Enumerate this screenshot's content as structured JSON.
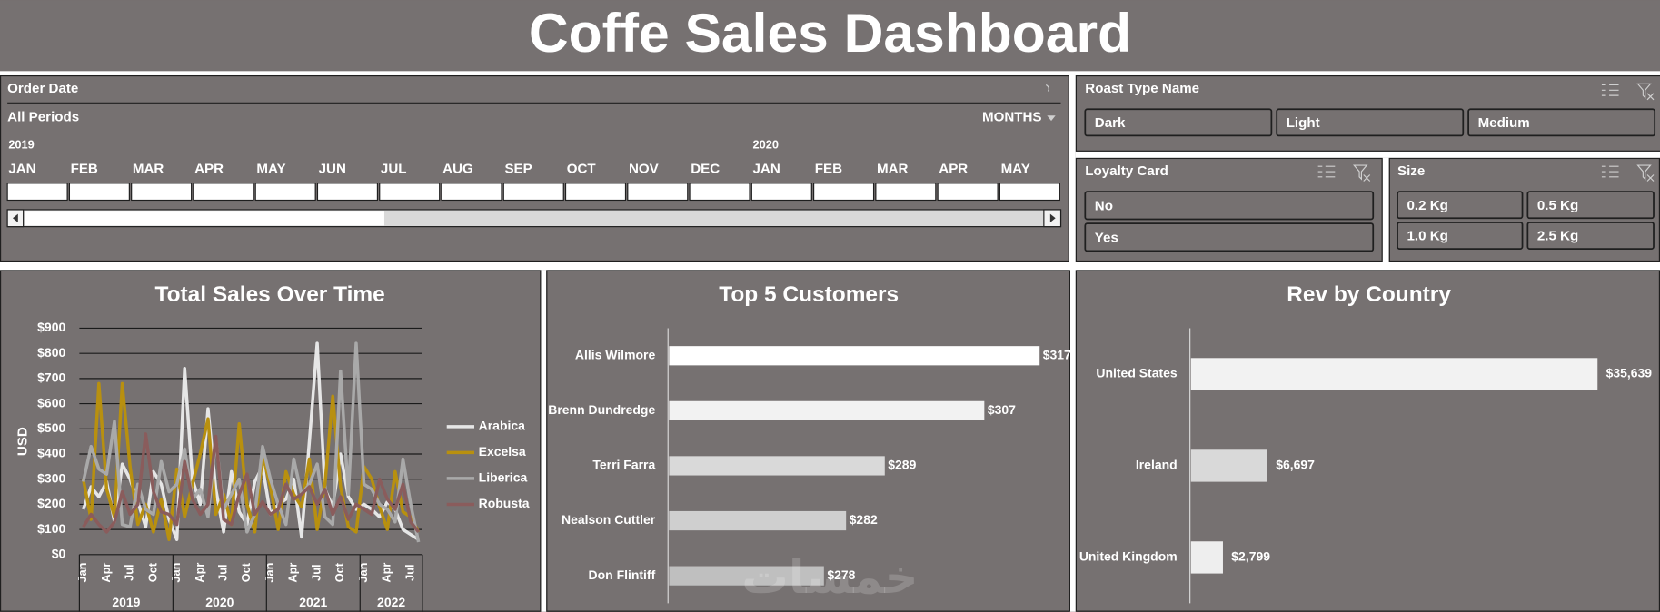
{
  "title": "Coffe Sales Dashboard",
  "timeline": {
    "title": "Order Date",
    "period": "All Periods",
    "level": "MONTHS",
    "years": [
      "2019",
      "2020"
    ],
    "months": [
      "JAN",
      "FEB",
      "MAR",
      "APR",
      "MAY",
      "JUN",
      "JUL",
      "AUG",
      "SEP",
      "OCT",
      "NOV",
      "DEC",
      "JAN",
      "FEB",
      "MAR",
      "APR",
      "MAY"
    ]
  },
  "slicers": [
    {
      "title": "Roast Type Name",
      "items": [
        "Dark",
        "Light",
        "Medium"
      ]
    },
    {
      "title": "Loyalty Card",
      "items": [
        "No",
        "Yes"
      ]
    },
    {
      "title": "Size",
      "items": [
        "0.2 Kg",
        "0.5 Kg",
        "1.0 Kg",
        "2.5 Kg"
      ]
    }
  ],
  "watermark": "خمسات",
  "chart_data": [
    {
      "type": "line",
      "title": "Total Sales Over Time",
      "ylabel": "USD",
      "categories": [
        "Jan",
        null,
        null,
        "Apr",
        null,
        null,
        "Jul",
        null,
        null,
        "Oct",
        null,
        null,
        "Jan",
        null,
        null,
        "Apr",
        null,
        null,
        "Jul",
        null,
        null,
        "Oct",
        null,
        null,
        "Jan",
        null,
        null,
        "Apr",
        null,
        null,
        "Jul",
        null,
        null,
        "Oct",
        null,
        null,
        "Jan",
        null,
        null,
        "Apr",
        null,
        null,
        "Jul",
        null
      ],
      "years": [
        "2019",
        "2020",
        "2021",
        "2022"
      ],
      "ylim": [
        0,
        900
      ],
      "yticks": [
        {
          "value": 0,
          "label": "$0"
        },
        {
          "value": 100,
          "label": "$100"
        },
        {
          "value": 200,
          "label": "$200"
        },
        {
          "value": 300,
          "label": "$300"
        },
        {
          "value": 400,
          "label": "$400"
        },
        {
          "value": 500,
          "label": "$500"
        },
        {
          "value": 600,
          "label": "$600"
        },
        {
          "value": 700,
          "label": "$700"
        },
        {
          "value": 800,
          "label": "$800"
        },
        {
          "value": 900,
          "label": "$900"
        }
      ],
      "grid": true,
      "legend": "right",
      "series": [
        {
          "name": "Arabica",
          "color": "#e6e6e6",
          "values": [
            180,
            270,
            230,
            290,
            130,
            360,
            300,
            210,
            110,
            330,
            280,
            140,
            60,
            740,
            300,
            200,
            580,
            260,
            90,
            330,
            170,
            120,
            290,
            350,
            160,
            200,
            220,
            300,
            70,
            450,
            840,
            260,
            190,
            400,
            230,
            180,
            200,
            180,
            150,
            210,
            180,
            100,
            80,
            60
          ]
        },
        {
          "name": "Excelsa",
          "color": "#b8900f",
          "values": [
            300,
            140,
            680,
            260,
            150,
            680,
            350,
            120,
            200,
            90,
            220,
            60,
            340,
            150,
            280,
            400,
            540,
            160,
            240,
            120,
            520,
            200,
            90,
            400,
            270,
            100,
            330,
            240,
            190,
            380,
            100,
            280,
            630,
            270,
            110,
            90,
            350,
            300,
            190,
            100,
            330,
            170,
            150,
            90
          ]
        },
        {
          "name": "Liberica",
          "color": "#a9a9a9",
          "values": [
            290,
            430,
            340,
            320,
            530,
            120,
            110,
            280,
            180,
            160,
            370,
            250,
            280,
            420,
            220,
            260,
            150,
            460,
            180,
            240,
            300,
            90,
            160,
            430,
            300,
            200,
            120,
            380,
            240,
            280,
            360,
            150,
            120,
            730,
            240,
            840,
            280,
            260,
            200,
            180,
            130,
            380,
            200,
            50
          ]
        },
        {
          "name": "Robusta",
          "color": "#8a5c5c",
          "values": [
            110,
            160,
            120,
            90,
            130,
            250,
            160,
            200,
            480,
            250,
            170,
            160,
            120,
            370,
            220,
            160,
            200,
            470,
            140,
            120,
            240,
            320,
            160,
            210,
            160,
            180,
            280,
            220,
            240,
            270,
            200,
            260,
            160,
            230,
            140,
            200,
            180,
            160,
            300,
            220,
            180,
            280,
            130,
            90
          ]
        }
      ]
    },
    {
      "type": "bar",
      "orientation": "horizontal",
      "title": "Top 5 Customers",
      "categories": [
        "Allis Wilmore",
        "Brenn Dundredge",
        "Terri Farra",
        "Nealson Cuttler",
        "Don Flintiff"
      ],
      "values": [
        317,
        307,
        289,
        282,
        278
      ],
      "value_labels": [
        "$317",
        "$307",
        "$289",
        "$282",
        "$278"
      ],
      "colors": [
        "#ffffff",
        "#f2f2f2",
        "#d9d9d9",
        "#cfcfcf",
        "#bfbfbf"
      ],
      "xlim": [
        250,
        317
      ]
    },
    {
      "type": "bar",
      "orientation": "horizontal",
      "title": "Rev by Country",
      "categories": [
        "United States",
        "Ireland",
        "United Kingdom"
      ],
      "values": [
        35639,
        6697,
        2799
      ],
      "value_labels": [
        "$35,639",
        "$6,697",
        "$2,799"
      ],
      "colors": [
        "#f2f2f2",
        "#d9d9d9",
        "#eeeeee"
      ],
      "xlim": [
        0,
        35639
      ]
    }
  ]
}
